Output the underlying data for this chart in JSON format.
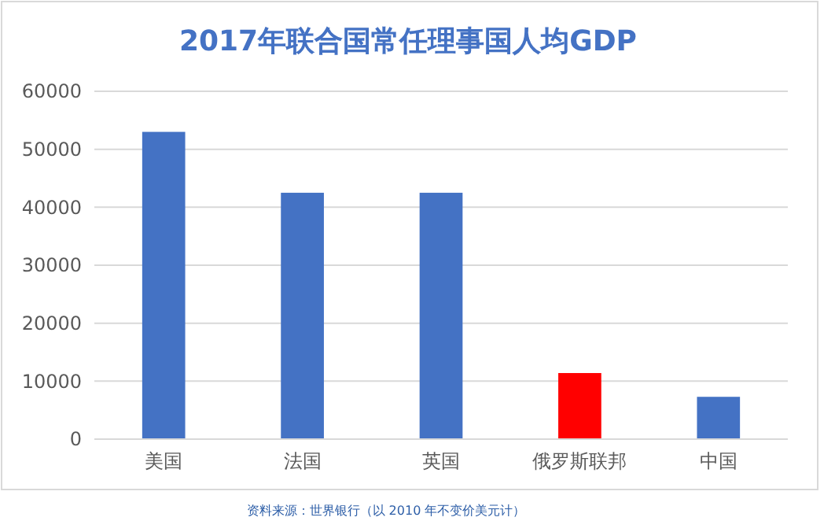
{
  "chart_data": {
    "type": "bar",
    "title": "2017年联合国常任理事国人均GDP",
    "categories": [
      "美国",
      "法国",
      "英国",
      "俄罗斯联邦",
      "中国"
    ],
    "values": [
      53000,
      42500,
      42500,
      11400,
      7300
    ],
    "colors": [
      "#4472c4",
      "#4472c4",
      "#4472c4",
      "#ff0000",
      "#4472c4"
    ],
    "ylim": [
      0,
      60000
    ],
    "yticks": [
      0,
      10000,
      20000,
      30000,
      40000,
      50000,
      60000
    ],
    "grid": "y",
    "annotations": [
      "资料来源：世界银行（以 2010 年不变价美元计）"
    ]
  }
}
